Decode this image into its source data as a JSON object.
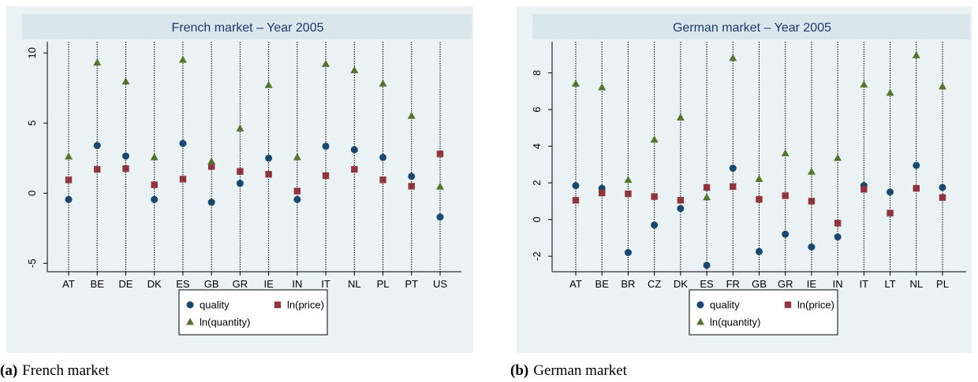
{
  "chart_data": [
    {
      "type": "scatter",
      "title": "French market – Year 2005",
      "caption_tag": "(a)",
      "caption": "French market",
      "categories": [
        "AT",
        "BE",
        "DE",
        "DK",
        "ES",
        "GB",
        "GR",
        "IE",
        "IN",
        "IT",
        "NL",
        "PL",
        "PT",
        "US"
      ],
      "ylim": [
        -5.6,
        10.8
      ],
      "yticks": [
        -5,
        0,
        5,
        10
      ],
      "series": [
        {
          "name": "quality",
          "color": "#1a476f",
          "marker": "circle",
          "values": [
            -0.45,
            3.4,
            2.65,
            -0.45,
            3.55,
            -0.65,
            0.7,
            2.5,
            -0.45,
            3.35,
            3.1,
            2.55,
            1.2,
            -1.7
          ]
        },
        {
          "name": "ln(price)",
          "color": "#90353b",
          "marker": "square",
          "values": [
            0.95,
            1.7,
            1.75,
            0.6,
            1.0,
            1.9,
            1.55,
            1.35,
            0.15,
            1.25,
            1.7,
            0.95,
            0.5,
            2.8
          ]
        },
        {
          "name": "ln(quantity)",
          "color": "#55752f",
          "marker": "triangle",
          "values": [
            2.6,
            9.3,
            7.95,
            2.55,
            9.5,
            2.25,
            4.6,
            7.7,
            2.55,
            9.2,
            8.75,
            7.8,
            5.5,
            0.45
          ]
        }
      ]
    },
    {
      "type": "scatter",
      "title": "German market – Year 2005",
      "caption_tag": "(b)",
      "caption": "German market",
      "categories": [
        "AT",
        "BE",
        "BR",
        "CZ",
        "DK",
        "ES",
        "FR",
        "GB",
        "GR",
        "IE",
        "IN",
        "IT",
        "LT",
        "NL",
        "PL"
      ],
      "ylim": [
        -2.85,
        9.7
      ],
      "yticks": [
        -2,
        0,
        2,
        4,
        6,
        8
      ],
      "series": [
        {
          "name": "quality",
          "color": "#1a476f",
          "marker": "circle",
          "values": [
            1.85,
            1.7,
            -1.8,
            -0.3,
            0.6,
            -2.5,
            2.8,
            -1.75,
            -0.8,
            -1.5,
            -0.95,
            1.85,
            1.5,
            2.95,
            1.75
          ]
        },
        {
          "name": "ln(price)",
          "color": "#90353b",
          "marker": "square",
          "values": [
            1.05,
            1.45,
            1.4,
            1.25,
            1.05,
            1.75,
            1.8,
            1.1,
            1.3,
            1.0,
            -0.2,
            1.65,
            0.35,
            1.7,
            1.2
          ]
        },
        {
          "name": "ln(quantity)",
          "color": "#55752f",
          "marker": "triangle",
          "values": [
            7.4,
            7.2,
            2.15,
            4.35,
            5.55,
            1.2,
            8.8,
            2.2,
            3.6,
            2.6,
            3.35,
            7.35,
            6.9,
            8.95,
            7.25
          ]
        }
      ]
    }
  ]
}
